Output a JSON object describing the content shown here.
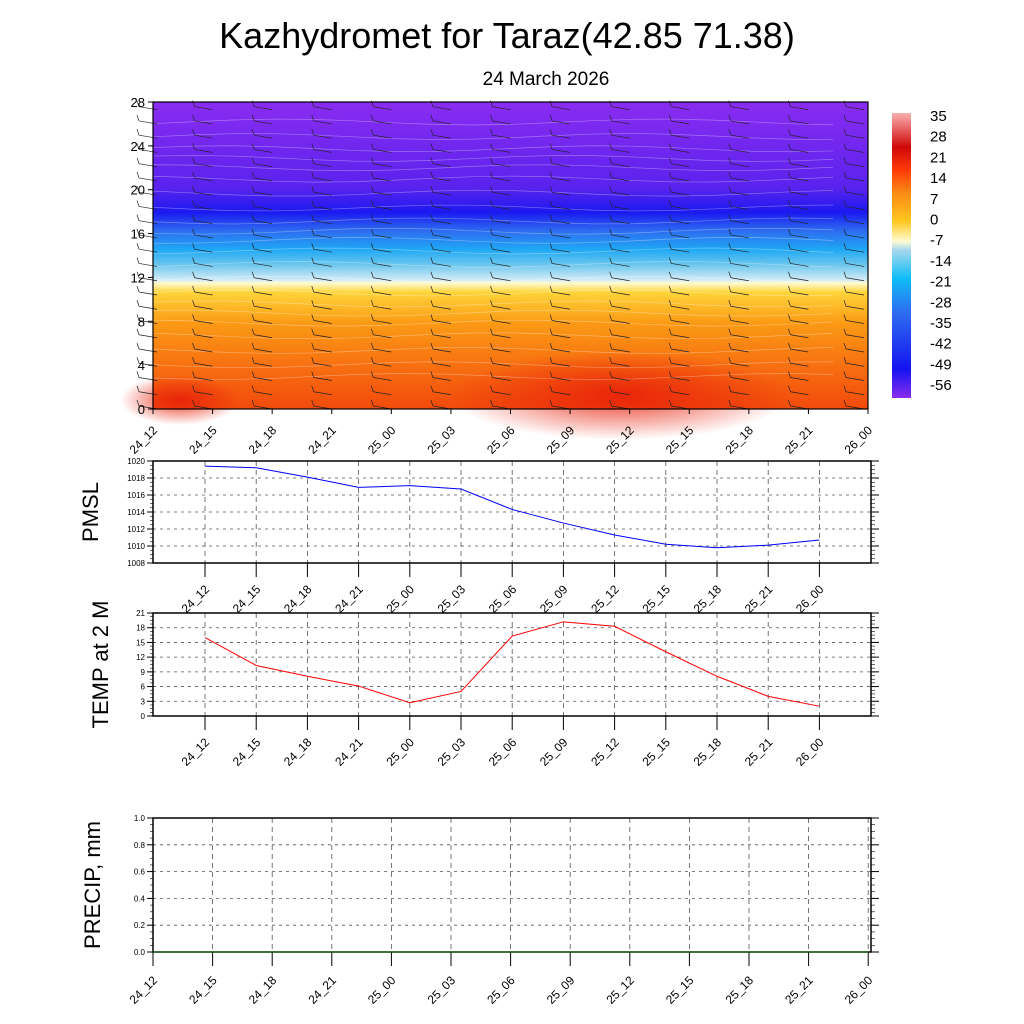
{
  "title": "Kazhydromet for Taraz(42.85 71.38)",
  "subtitle": "24 March 2026",
  "chart_data": [
    {
      "type": "heatmap",
      "name": "vertical-cross-section",
      "description_axis": "height",
      "y_ticks": [
        "0",
        "4",
        "8",
        "12",
        "16",
        "20",
        "24",
        "28"
      ],
      "ylim": [
        0,
        28
      ],
      "x_ticks": [
        "24_12",
        "24_15",
        "24_18",
        "24_21",
        "25_00",
        "25_03",
        "25_06",
        "25_09",
        "25_12",
        "25_15",
        "25_18",
        "25_21",
        "26_00"
      ],
      "colorbar_labels": [
        "35",
        "28",
        "21",
        "14",
        "7",
        "0",
        "-7",
        "-14",
        "-21",
        "-28",
        "-35",
        "-42",
        "-49",
        "-56"
      ],
      "colorbar_range": [
        -60,
        38
      ]
    },
    {
      "type": "line",
      "name": "pmsl",
      "ylabel": "PMSL",
      "ylim": [
        1008,
        1020
      ],
      "y_ticks": [
        "1008",
        "1010",
        "1012",
        "1014",
        "1016",
        "1018",
        "1020"
      ],
      "x": [
        "24_12",
        "24_15",
        "24_18",
        "24_21",
        "25_00",
        "25_03",
        "25_06",
        "25_09",
        "25_12",
        "25_15",
        "25_18",
        "25_21",
        "26_00"
      ],
      "values": [
        1019.4,
        1019.2,
        1018.1,
        1016.9,
        1017.1,
        1016.7,
        1014.3,
        1012.7,
        1011.3,
        1010.2,
        1009.8,
        1010.1,
        1010.7
      ],
      "color": "#0000ff"
    },
    {
      "type": "line",
      "name": "temp-2m",
      "ylabel": "TEMP at 2 M",
      "ylim": [
        0,
        21
      ],
      "y_ticks": [
        "0",
        "3",
        "6",
        "9",
        "12",
        "15",
        "18",
        "21"
      ],
      "x": [
        "24_12",
        "24_15",
        "24_18",
        "24_21",
        "25_00",
        "25_03",
        "25_06",
        "25_09",
        "25_12",
        "25_15",
        "25_18",
        "25_21",
        "26_00"
      ],
      "values": [
        16.0,
        10.3,
        8.1,
        6.1,
        2.7,
        5.0,
        16.3,
        19.2,
        18.3,
        13.1,
        8.1,
        4.0,
        2.0
      ],
      "color": "#ff0000"
    },
    {
      "type": "line",
      "name": "precip",
      "ylabel": "PRECIP, mm",
      "ylim": [
        0,
        1
      ],
      "y_ticks": [
        "0.0",
        "0.2",
        "0.4",
        "0.6",
        "0.8",
        "1.0"
      ],
      "x": [
        "24_12",
        "24_15",
        "24_18",
        "24_21",
        "25_00",
        "25_03",
        "25_06",
        "25_09",
        "25_12",
        "25_15",
        "25_18",
        "25_21",
        "26_00"
      ],
      "values": [
        0,
        0,
        0,
        0,
        0,
        0,
        0,
        0,
        0,
        0,
        0,
        0,
        0
      ],
      "color": "#006400"
    }
  ]
}
